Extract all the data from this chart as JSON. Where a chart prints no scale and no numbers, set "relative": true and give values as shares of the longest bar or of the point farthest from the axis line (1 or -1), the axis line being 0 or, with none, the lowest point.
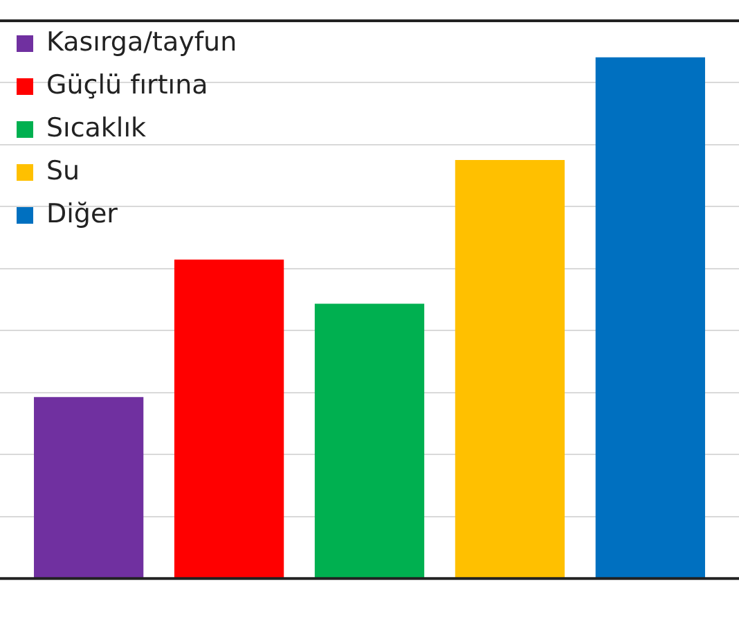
{
  "chart_data": {
    "type": "bar",
    "relative": true,
    "categories": [
      null
    ],
    "series": [
      {
        "name": "Kasırga/tayfun",
        "color": "#7030a0",
        "values": [
          0.348
        ]
      },
      {
        "name": "Güçlü fırtına",
        "color": "#ff0000",
        "values": [
          0.612
        ]
      },
      {
        "name": "Sıcaklık",
        "color": "#00b050",
        "values": [
          0.527
        ]
      },
      {
        "name": "Su",
        "color": "#ffc000",
        "values": [
          0.803
        ]
      },
      {
        "name": "Diğer",
        "color": "#0070c0",
        "values": [
          1
        ]
      }
    ],
    "grid": "y",
    "legend": "top left"
  }
}
